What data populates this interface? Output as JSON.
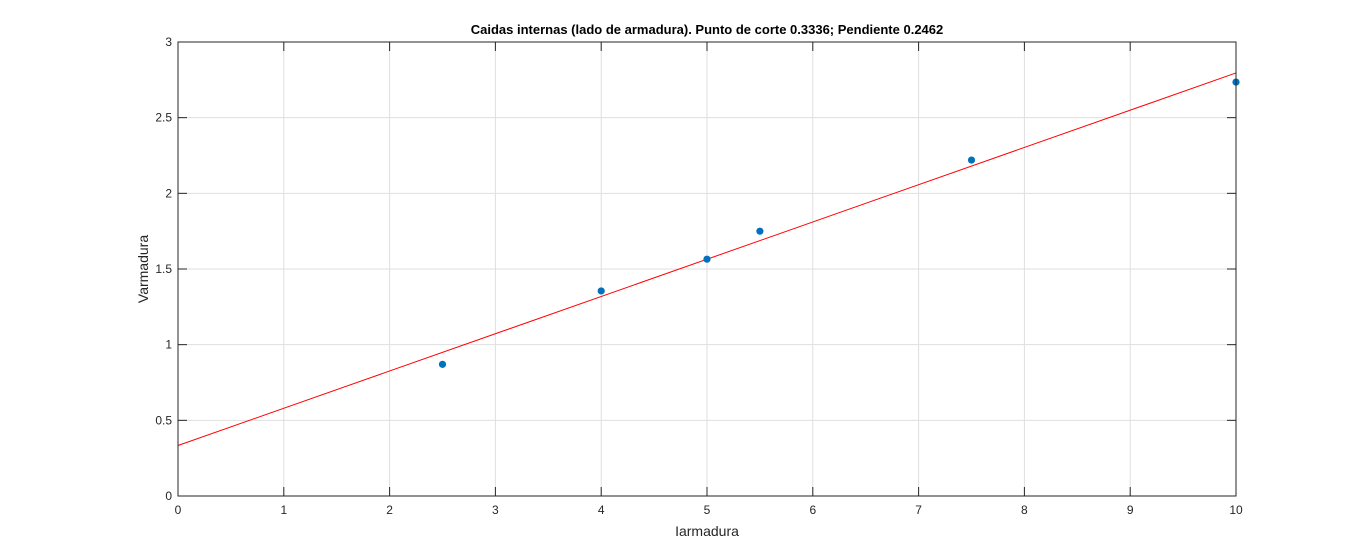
{
  "chart_data": {
    "type": "scatter",
    "title": "Caidas internas (lado de  armadura). Punto de corte 0.3336; Pendiente 0.2462",
    "xlabel": "Iarmadura",
    "ylabel": "Varmadura",
    "xlim": [
      0,
      10
    ],
    "ylim": [
      0,
      3
    ],
    "xticks": [
      0,
      1,
      2,
      3,
      4,
      5,
      6,
      7,
      8,
      9,
      10
    ],
    "yticks": [
      0,
      0.5,
      1,
      1.5,
      2,
      2.5,
      3
    ],
    "grid": true,
    "series": [
      {
        "kind": "points",
        "color": "#0072BD",
        "x": [
          2.5,
          4,
          5,
          5.5,
          7.5,
          10
        ],
        "y": [
          0.87,
          1.355,
          1.565,
          1.75,
          2.22,
          2.735
        ]
      },
      {
        "kind": "fit-line",
        "color": "#FF0000",
        "intercept": 0.3336,
        "slope": 0.2462,
        "x": [
          0,
          10
        ]
      }
    ]
  }
}
